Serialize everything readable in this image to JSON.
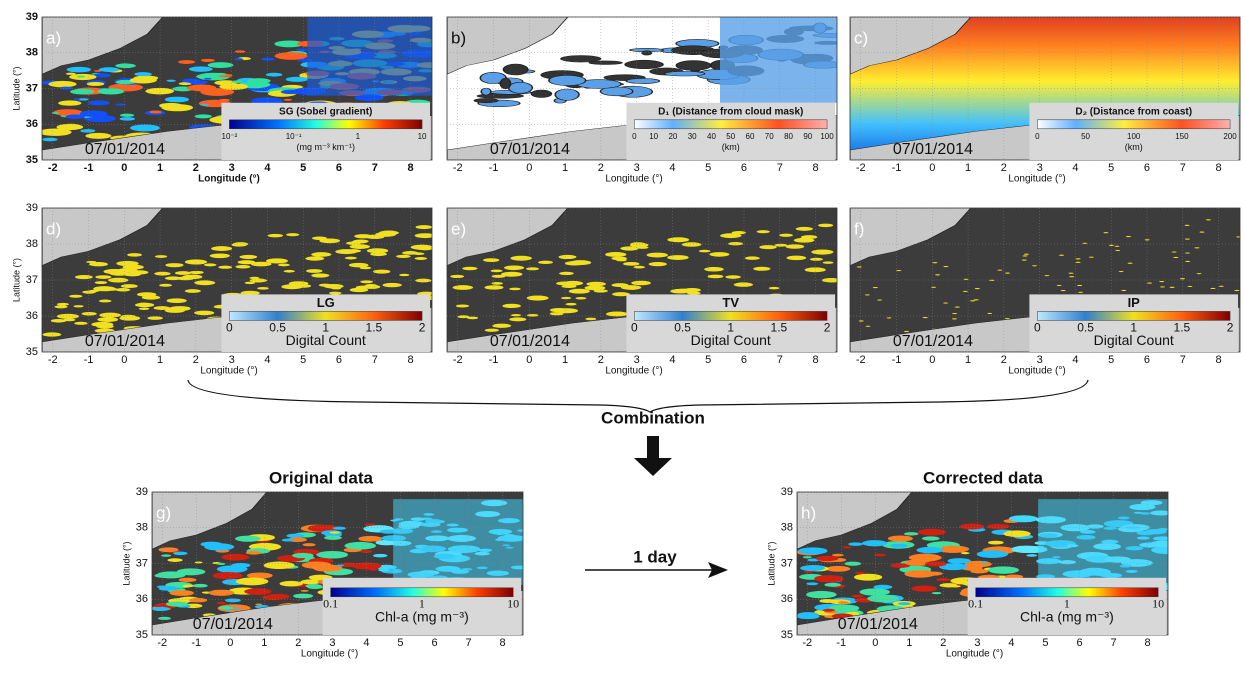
{
  "axes": {
    "xlim": [
      -2.3,
      8.6
    ],
    "ylim": [
      35,
      39
    ],
    "xticks": [
      -2,
      -1,
      0,
      1,
      2,
      3,
      4,
      5,
      6,
      7,
      8
    ],
    "yticks": [
      35,
      36,
      37,
      38,
      39
    ],
    "xlabel": "Longitude (°)",
    "ylabel": "Latitude (°)"
  },
  "panels": [
    {
      "label": "a)",
      "date": "07/01/2014",
      "colorbar": {
        "title": "SG (Sobel gradient)",
        "ticks": [
          "10⁻²",
          "10⁻¹",
          "1",
          "10"
        ],
        "caption": "(mg m⁻³ km⁻¹)"
      }
    },
    {
      "label": "b)",
      "date": "07/01/2014",
      "colorbar": {
        "title": "D₁ (Distance from cloud mask)",
        "ticks": [
          "0",
          "10",
          "20",
          "30",
          "40",
          "50",
          "60",
          "70",
          "80",
          "90",
          "100"
        ],
        "caption": "(km)"
      }
    },
    {
      "label": "c)",
      "date": "07/01/2014",
      "colorbar": {
        "title": "D₂ (Distance from coast)",
        "ticks": [
          "0",
          "50",
          "100",
          "150",
          "200"
        ],
        "caption": "(km)"
      }
    },
    {
      "label": "d)",
      "date": "07/01/2014",
      "colorbar": {
        "title": "LG",
        "ticks": [
          "0",
          "0.5",
          "1",
          "1.5",
          "2"
        ],
        "caption": "Digital Count"
      }
    },
    {
      "label": "e)",
      "date": "07/01/2014",
      "colorbar": {
        "title": "TV",
        "ticks": [
          "0",
          "0.5",
          "1",
          "1.5",
          "2"
        ],
        "caption": "Digital Count"
      }
    },
    {
      "label": "f)",
      "date": "07/01/2014",
      "colorbar": {
        "title": "IP",
        "ticks": [
          "0",
          "0.5",
          "1",
          "1.5",
          "2"
        ],
        "caption": "Digital Count"
      }
    },
    {
      "label": "g)",
      "date": "07/01/2014",
      "colorbar": {
        "ticks": [
          "0.1",
          "1",
          "10"
        ],
        "caption": "Chl-a (mg m⁻³)"
      }
    },
    {
      "label": "h)",
      "date": "07/01/2014",
      "colorbar": {
        "ticks": [
          "0.1",
          "1",
          "10"
        ],
        "caption": "Chl-a (mg m⁻³)"
      }
    }
  ],
  "combination": "Combination",
  "original": "Original data",
  "corrected": "Corrected data",
  "step": "1 day"
}
